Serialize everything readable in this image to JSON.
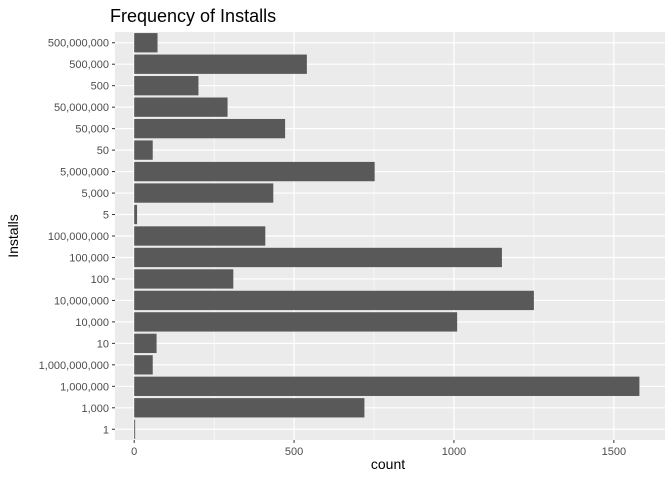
{
  "chart_data": {
    "type": "bar",
    "orientation": "horizontal",
    "title": "Frequency of Installs",
    "xlabel": "count",
    "ylabel": "Installs",
    "categories": [
      "1",
      "1,000",
      "1,000,000",
      "1,000,000,000",
      "10",
      "10,000",
      "10,000,000",
      "100",
      "100,000",
      "100,000,000",
      "5",
      "5,000",
      "5,000,000",
      "50",
      "50,000",
      "50,000,000",
      "500",
      "500,000",
      "500,000,000"
    ],
    "values": [
      3,
      720,
      1580,
      58,
      70,
      1010,
      1250,
      310,
      1150,
      410,
      9,
      435,
      752,
      58,
      472,
      292,
      201,
      540,
      73
    ],
    "xlim": [
      -60,
      1660
    ],
    "xticks": [
      0,
      500,
      1000,
      1500
    ],
    "grid": true,
    "bar_color": "#595959",
    "panel_background": "#ebebeb",
    "grid_color": "#ffffff"
  }
}
